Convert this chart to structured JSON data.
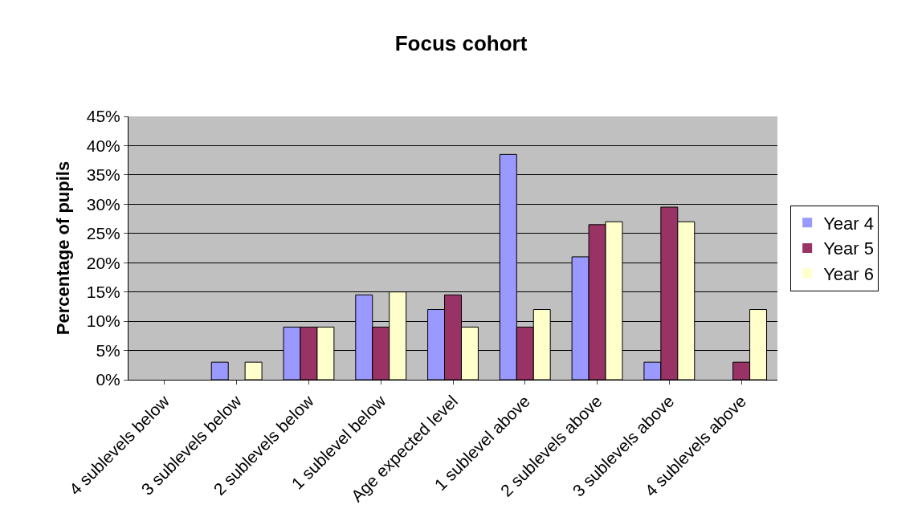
{
  "chart_data": {
    "type": "bar",
    "title": "Focus cohort",
    "ylabel": "Percentage of pupils",
    "categories": [
      "4 sublevels below",
      "3 sublevels below",
      "2 sublevels below",
      "1 sublevel below",
      "Age expected level",
      "1 sublevel above",
      "2 sublevels above",
      "3 sublevels above",
      "4 sublevels above"
    ],
    "series": [
      {
        "name": "Year 4",
        "color": "#9999ff",
        "values": [
          0,
          3,
          9,
          14.5,
          12,
          38.5,
          21,
          3,
          0
        ]
      },
      {
        "name": "Year 5",
        "color": "#993366",
        "values": [
          0,
          0,
          9,
          9,
          14.5,
          9,
          26.5,
          29.5,
          3
        ]
      },
      {
        "name": "Year 6",
        "color": "#ffffcc",
        "values": [
          0,
          3,
          9,
          15,
          9,
          12,
          27,
          27,
          12
        ]
      }
    ],
    "ylim": [
      0,
      45
    ],
    "yticks": [
      {
        "value": 0,
        "label": "0%"
      },
      {
        "value": 5,
        "label": "5%"
      },
      {
        "value": 10,
        "label": "10%"
      },
      {
        "value": 15,
        "label": "15%"
      },
      {
        "value": 20,
        "label": "20%"
      },
      {
        "value": 25,
        "label": "25%"
      },
      {
        "value": 30,
        "label": "30%"
      },
      {
        "value": 35,
        "label": "35%"
      },
      {
        "value": 40,
        "label": "40%"
      },
      {
        "value": 45,
        "label": "45%"
      }
    ],
    "grid": "y",
    "legend": "right"
  }
}
